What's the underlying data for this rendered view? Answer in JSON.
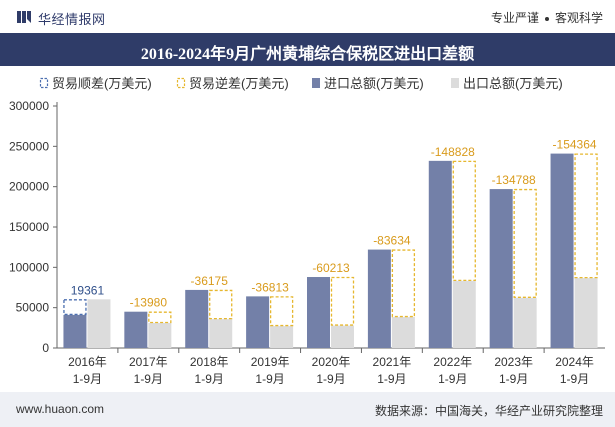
{
  "header": {
    "brand": "华经情报网",
    "motto_left": "专业严谨",
    "motto_right": "客观科学"
  },
  "title": "2016-2024年9月广州黄埔综合保税区进出口差额",
  "footer": {
    "url": "www.huaon.com",
    "source": "数据来源：中国海关，华经产业研究院整理"
  },
  "colors": {
    "import": "#7380a8",
    "export": "#dcdcdc",
    "surplus": "#4c6fb0",
    "deficit": "#e6b72e",
    "deficit_label": "#d99b1c",
    "header_bg": "#2f3c68"
  },
  "chart_data": {
    "type": "bar",
    "title": "2016-2024年9月广州黄埔综合保税区进出口差额",
    "legend": [
      "贸易顺差(万美元)",
      "贸易逆差(万美元)",
      "进口总额(万美元)",
      "出口总额(万美元)"
    ],
    "legend_position": "top",
    "categories": [
      [
        "2016年",
        "1-9月"
      ],
      [
        "2017年",
        "1-9月"
      ],
      [
        "2018年",
        "1-9月"
      ],
      [
        "2019年",
        "1-9月"
      ],
      [
        "2020年",
        "1-9月"
      ],
      [
        "2021年",
        "1-9月"
      ],
      [
        "2022年",
        "1-9月"
      ],
      [
        "2023年",
        "1-9月"
      ],
      [
        "2024年",
        "1-9月"
      ]
    ],
    "series": [
      {
        "name": "进口总额(万美元)",
        "values": [
          41000,
          45000,
          72000,
          64000,
          88000,
          122000,
          232000,
          197000,
          241000
        ]
      },
      {
        "name": "出口总额(万美元)",
        "values": [
          60361,
          31020,
          35825,
          27187,
          27787,
          38366,
          83172,
          62212,
          86636
        ]
      }
    ],
    "balance": [
      19361,
      -13980,
      -36175,
      -36813,
      -60213,
      -83634,
      -148828,
      -134788,
      -154364
    ],
    "balance_labels": [
      "19361",
      "-13980",
      "-36175",
      "-36813",
      "-60213",
      "-83634",
      "-148828",
      "-134788",
      "-154364"
    ],
    "ylim": [
      0,
      300000
    ],
    "yticks": [
      0,
      50000,
      100000,
      150000,
      200000,
      250000,
      300000
    ],
    "ytick_labels": [
      "0",
      "50000",
      "100000",
      "150000",
      "200000",
      "250000",
      "300000"
    ],
    "xlabel": "",
    "ylabel": ""
  }
}
